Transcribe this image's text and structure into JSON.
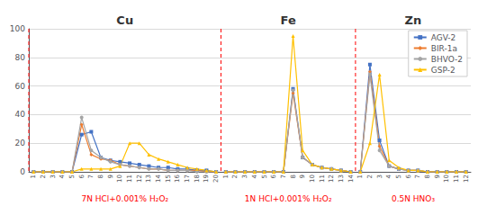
{
  "chart_data": {
    "type": "line",
    "categories": [
      "1",
      "2",
      "3",
      "4",
      "5",
      "6",
      "7",
      "8",
      "9",
      "10",
      "11",
      "12",
      "13",
      "14",
      "15",
      "16",
      "17",
      "18",
      "19",
      "20",
      "1",
      "2",
      "3",
      "4",
      "5",
      "6",
      "7",
      "8",
      "9",
      "10",
      "11",
      "12",
      "13",
      "14",
      "1",
      "2",
      "3",
      "4",
      "5",
      "6",
      "7",
      "8",
      "9",
      "10",
      "11",
      "12"
    ],
    "sections": [
      {
        "title": "Cu",
        "label": "7N HCl+0.001% H₂O₂",
        "color": "#FF0000"
      },
      {
        "title": "Fe",
        "label": "1N HCl+0.001% H₂O₂",
        "color": "#FF0000"
      },
      {
        "title": "Zn",
        "label": "0.5N HNO₃",
        "color": "#FF0000"
      }
    ],
    "series": [
      {
        "name": "AGV-2",
        "color": "#4472C4",
        "marker": "square",
        "values": [
          0,
          0,
          0,
          0,
          0,
          26,
          28,
          10,
          8,
          7,
          6,
          5,
          4,
          3,
          3,
          2,
          2,
          1,
          1,
          0,
          0,
          0,
          0,
          0,
          0,
          0,
          0,
          58,
          10,
          5,
          3,
          2,
          1,
          0,
          0,
          75,
          22,
          4,
          2,
          1,
          1,
          0,
          0,
          0,
          0,
          0
        ]
      },
      {
        "name": "BIR-1a",
        "color": "#ED7D31",
        "marker": "diamond",
        "values": [
          0,
          0,
          0,
          0,
          0,
          33,
          12,
          9,
          8,
          5,
          4,
          3,
          2,
          2,
          1,
          1,
          1,
          1,
          0,
          0,
          0,
          0,
          0,
          0,
          0,
          0,
          0,
          55,
          10,
          5,
          3,
          2,
          1,
          0,
          0,
          70,
          18,
          4,
          2,
          1,
          1,
          0,
          0,
          0,
          0,
          0
        ]
      },
      {
        "name": "BHVO-2",
        "color": "#A5A5A5",
        "marker": "circle",
        "values": [
          0,
          0,
          0,
          0,
          0,
          38,
          15,
          10,
          7,
          5,
          4,
          3,
          2,
          2,
          1,
          1,
          1,
          0,
          0,
          0,
          0,
          0,
          0,
          0,
          0,
          0,
          0,
          57,
          10,
          5,
          3,
          2,
          1,
          0,
          0,
          68,
          15,
          4,
          2,
          1,
          1,
          0,
          0,
          0,
          0,
          0
        ]
      },
      {
        "name": "GSP-2",
        "color": "#FFC000",
        "marker": "triangle",
        "values": [
          0,
          0,
          0,
          0,
          0,
          2,
          2,
          2,
          2,
          4,
          20,
          20,
          12,
          9,
          7,
          5,
          3,
          2,
          1,
          0,
          0,
          0,
          0,
          0,
          0,
          0,
          0,
          95,
          15,
          5,
          3,
          2,
          1,
          0,
          0,
          20,
          68,
          8,
          3,
          1,
          1,
          0,
          0,
          0,
          0,
          0
        ]
      }
    ],
    "ylim": [
      0,
      100
    ],
    "yticks": [
      0,
      20,
      40,
      60,
      80,
      100
    ],
    "grid": true,
    "legend": "upper right"
  }
}
